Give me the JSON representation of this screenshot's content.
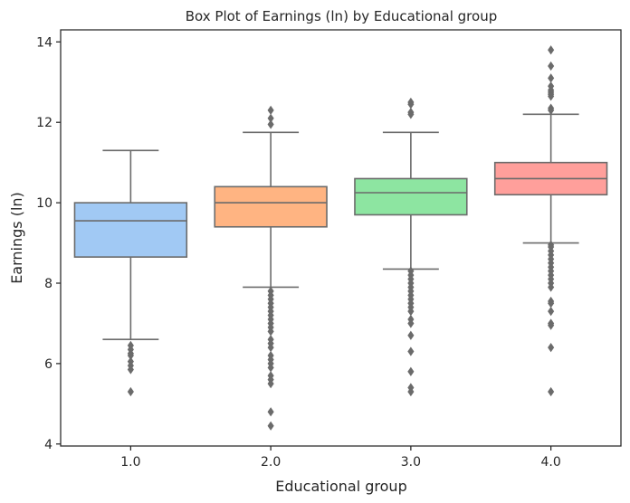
{
  "chart_data": {
    "type": "box",
    "title": "Box Plot of Earnings (ln) by Educational group",
    "xlabel": "Educational group",
    "ylabel": "Earnings (ln)",
    "ylim": [
      3.95,
      14.3
    ],
    "yticks": [
      4,
      6,
      8,
      10,
      12,
      14
    ],
    "yticklabels": [
      "4",
      "6",
      "8",
      "10",
      "12",
      "14"
    ],
    "grid": false,
    "legend": "none",
    "categories": [
      "1.0",
      "2.0",
      "3.0",
      "4.0"
    ],
    "colors": [
      "#a1c9f4",
      "#ffb482",
      "#8de5a1",
      "#ff9f9b"
    ],
    "line_color": "#6b6b6b",
    "boxes": [
      {
        "category": "1.0",
        "whisker_low": 6.6,
        "q1": 8.65,
        "median": 9.55,
        "q3": 10.0,
        "whisker_high": 11.3,
        "outliers": [
          6.45,
          6.35,
          6.25,
          6.2,
          6.05,
          5.95,
          5.85,
          5.3
        ]
      },
      {
        "category": "2.0",
        "whisker_low": 7.9,
        "q1": 9.4,
        "median": 10.0,
        "q3": 10.4,
        "whisker_high": 11.75,
        "outliers": [
          12.3,
          12.1,
          11.95,
          7.8,
          7.7,
          7.6,
          7.5,
          7.4,
          7.3,
          7.2,
          7.1,
          7.0,
          6.9,
          6.8,
          6.6,
          6.5,
          6.4,
          6.2,
          6.1,
          6.0,
          5.9,
          5.7,
          5.6,
          5.5,
          4.8,
          4.45
        ]
      },
      {
        "category": "3.0",
        "whisker_low": 8.35,
        "q1": 9.7,
        "median": 10.25,
        "q3": 10.6,
        "whisker_high": 11.75,
        "outliers": [
          12.5,
          12.45,
          12.25,
          12.2,
          8.3,
          8.2,
          8.1,
          8.0,
          7.9,
          7.8,
          7.7,
          7.6,
          7.5,
          7.4,
          7.3,
          7.1,
          7.0,
          6.7,
          6.3,
          5.8,
          5.4,
          5.3
        ]
      },
      {
        "category": "4.0",
        "whisker_low": 9.0,
        "q1": 10.2,
        "median": 10.6,
        "q3": 11.0,
        "whisker_high": 12.2,
        "outliers": [
          13.8,
          13.4,
          13.1,
          12.9,
          12.8,
          12.75,
          12.7,
          12.65,
          12.35,
          12.3,
          8.95,
          8.9,
          8.8,
          8.7,
          8.6,
          8.5,
          8.4,
          8.3,
          8.2,
          8.1,
          8.0,
          7.9,
          7.55,
          7.5,
          7.3,
          7.0,
          6.95,
          6.4,
          5.3
        ]
      }
    ]
  }
}
